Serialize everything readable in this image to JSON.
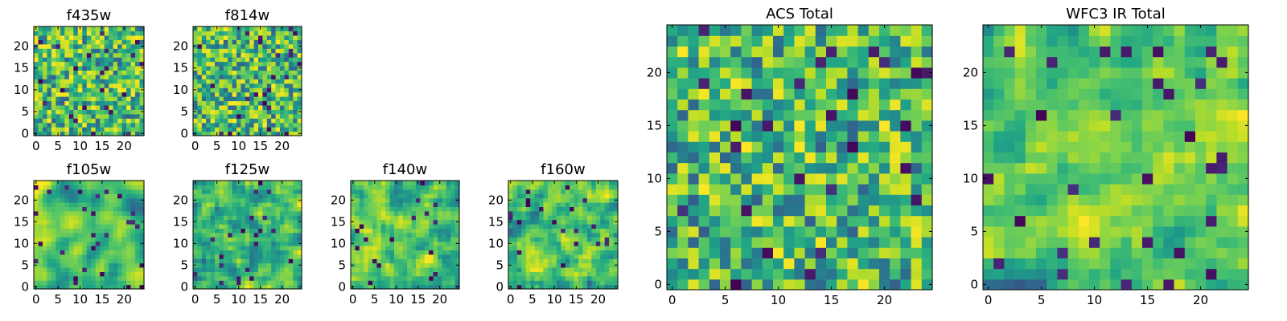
{
  "chart_data": [
    {
      "type": "heatmap",
      "title": "f435w",
      "colormap": "viridis",
      "x": [
        0,
        24
      ],
      "y": [
        0,
        24
      ],
      "grid_shape": [
        25,
        25
      ],
      "xticks": [
        0,
        5,
        10,
        15,
        20
      ],
      "yticks": [
        0,
        5,
        10,
        15,
        20
      ],
      "xlim": [
        -0.5,
        24.5
      ],
      "ylim": [
        -0.5,
        24.5
      ],
      "seed": 11,
      "smooth": 0,
      "bias": 0.65
    },
    {
      "type": "heatmap",
      "title": "f814w",
      "colormap": "viridis",
      "x": [
        0,
        24
      ],
      "y": [
        0,
        24
      ],
      "grid_shape": [
        25,
        25
      ],
      "xticks": [
        0,
        5,
        10,
        15,
        20
      ],
      "yticks": [
        0,
        5,
        10,
        15,
        20
      ],
      "xlim": [
        -0.5,
        24.5
      ],
      "ylim": [
        -0.5,
        24.5
      ],
      "seed": 23,
      "smooth": 0,
      "bias": 0.65
    },
    {
      "type": "heatmap",
      "title": "f105w",
      "colormap": "viridis",
      "x": [
        0,
        24
      ],
      "y": [
        0,
        24
      ],
      "grid_shape": [
        25,
        25
      ],
      "xticks": [
        0,
        5,
        10,
        15,
        20
      ],
      "yticks": [
        0,
        5,
        10,
        15,
        20
      ],
      "xlim": [
        -0.5,
        24.5
      ],
      "ylim": [
        -0.5,
        24.5
      ],
      "seed": 37,
      "smooth": 2,
      "bias": 0.7
    },
    {
      "type": "heatmap",
      "title": "f125w",
      "colormap": "viridis",
      "x": [
        0,
        24
      ],
      "y": [
        0,
        24
      ],
      "grid_shape": [
        25,
        25
      ],
      "xticks": [
        0,
        5,
        10,
        15,
        20
      ],
      "yticks": [
        0,
        5,
        10,
        15,
        20
      ],
      "xlim": [
        -0.5,
        24.5
      ],
      "ylim": [
        -0.5,
        24.5
      ],
      "seed": 41,
      "smooth": 1,
      "bias": 0.62
    },
    {
      "type": "heatmap",
      "title": "f140w",
      "colormap": "viridis",
      "x": [
        0,
        24
      ],
      "y": [
        0,
        24
      ],
      "grid_shape": [
        25,
        25
      ],
      "xticks": [
        0,
        5,
        10,
        15,
        20
      ],
      "yticks": [
        0,
        5,
        10,
        15,
        20
      ],
      "xlim": [
        -0.5,
        24.5
      ],
      "ylim": [
        -0.5,
        24.5
      ],
      "seed": 53,
      "smooth": 1,
      "bias": 0.62
    },
    {
      "type": "heatmap",
      "title": "f160w",
      "colormap": "viridis",
      "x": [
        0,
        24
      ],
      "y": [
        0,
        24
      ],
      "grid_shape": [
        25,
        25
      ],
      "xticks": [
        0,
        5,
        10,
        15,
        20
      ],
      "yticks": [
        0,
        5,
        10,
        15,
        20
      ],
      "xlim": [
        -0.5,
        24.5
      ],
      "ylim": [
        -0.5,
        24.5
      ],
      "seed": 67,
      "smooth": 1,
      "bias": 0.62
    },
    {
      "type": "heatmap",
      "title": "ACS Total",
      "colormap": "viridis",
      "x": [
        0,
        24
      ],
      "y": [
        0,
        24
      ],
      "grid_shape": [
        25,
        25
      ],
      "xticks": [
        0,
        5,
        10,
        15,
        20
      ],
      "yticks": [
        0,
        5,
        10,
        15,
        20
      ],
      "xlim": [
        -0.5,
        24.5
      ],
      "ylim": [
        -0.5,
        24.5
      ],
      "seed": 79,
      "smooth": 0,
      "bias": 0.62
    },
    {
      "type": "heatmap",
      "title": "WFC3 IR Total",
      "colormap": "viridis",
      "x": [
        0,
        24
      ],
      "y": [
        0,
        24
      ],
      "grid_shape": [
        25,
        25
      ],
      "xticks": [
        0,
        5,
        10,
        15,
        20
      ],
      "yticks": [
        0,
        5,
        10,
        15,
        20
      ],
      "xlim": [
        -0.5,
        24.5
      ],
      "ylim": [
        -0.5,
        24.5
      ],
      "seed": 97,
      "smooth": 1,
      "bias": 0.55
    }
  ]
}
